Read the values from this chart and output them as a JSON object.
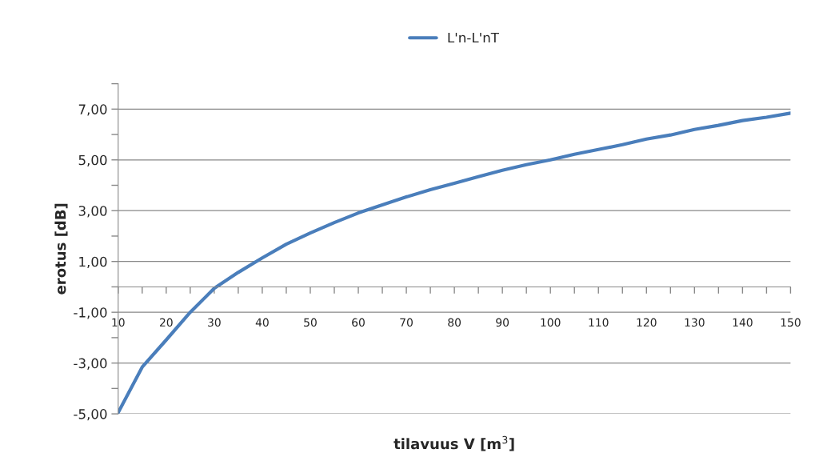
{
  "chart_data": {
    "type": "line",
    "xlabel": "tilavuus V [m$^{3}$]",
    "ylabel": "erotus [dB]",
    "x": [
      10,
      15,
      20,
      25,
      30,
      35,
      40,
      45,
      50,
      55,
      60,
      65,
      70,
      75,
      80,
      85,
      90,
      95,
      100,
      105,
      110,
      115,
      120,
      125,
      130,
      135,
      140,
      145,
      150
    ],
    "series": [
      {
        "name": "L'n-L'nT",
        "color": "#4a7ebb",
        "values": [
          -4.95,
          -3.16,
          -2.09,
          -1.0,
          -0.06,
          0.57,
          1.14,
          1.68,
          2.12,
          2.53,
          2.91,
          3.23,
          3.54,
          3.83,
          4.08,
          4.34,
          4.59,
          4.81,
          5.0,
          5.22,
          5.41,
          5.6,
          5.82,
          5.98,
          6.2,
          6.36,
          6.55,
          6.68,
          6.84
        ]
      }
    ],
    "xlim": [
      10,
      150
    ],
    "ylim": [
      -5,
      8
    ],
    "xticks": [
      10,
      {
        "value": 15,
        "label": null
      },
      20,
      {
        "value": 25,
        "label": null
      },
      30,
      {
        "value": 35,
        "label": null
      },
      40,
      {
        "value": 45,
        "label": null
      },
      50,
      {
        "value": 55,
        "label": null
      },
      60,
      {
        "value": 65,
        "label": null
      },
      70,
      {
        "value": 75,
        "label": null
      },
      80,
      {
        "value": 85,
        "label": null
      },
      90,
      {
        "value": 95,
        "label": null
      },
      100,
      {
        "value": 105,
        "label": null
      },
      110,
      {
        "value": 115,
        "label": null
      },
      120,
      {
        "value": 125,
        "label": null
      },
      130,
      {
        "value": 135,
        "label": null
      },
      140,
      {
        "value": 145,
        "label": null
      },
      150
    ],
    "yticks": [
      {
        "value": -5,
        "label": "-5,00"
      },
      {
        "value": -4,
        "label": null
      },
      {
        "value": -3,
        "label": "-3,00"
      },
      {
        "value": -2,
        "label": null
      },
      {
        "value": -1,
        "label": "-1,00"
      },
      {
        "value": 0,
        "label": null
      },
      {
        "value": 1,
        "label": "1,00"
      },
      {
        "value": 2,
        "label": null
      },
      {
        "value": 3,
        "label": "3,00"
      },
      {
        "value": 4,
        "label": null
      },
      {
        "value": 5,
        "label": "5,00"
      },
      {
        "value": 6,
        "label": null
      },
      {
        "value": 7,
        "label": "7,00"
      },
      {
        "value": 8,
        "label": null
      }
    ],
    "grid": "y",
    "legend": "top",
    "marker": "none",
    "line_style": "solid"
  }
}
